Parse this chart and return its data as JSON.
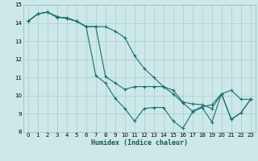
{
  "xlabel": "Humidex (Indice chaleur)",
  "bg_color": "#cce8e8",
  "grid_color": "#aacccc",
  "line_color": "#1a7070",
  "xlim": [
    -0.5,
    23.5
  ],
  "ylim": [
    8,
    15
  ],
  "xticks": [
    0,
    1,
    2,
    3,
    4,
    5,
    6,
    7,
    8,
    9,
    10,
    11,
    12,
    13,
    14,
    15,
    16,
    17,
    18,
    19,
    20,
    21,
    22,
    23
  ],
  "yticks": [
    8,
    9,
    10,
    11,
    12,
    13,
    14,
    15
  ],
  "series": [
    [
      14.1,
      14.5,
      14.6,
      14.3,
      14.3,
      14.1,
      13.8,
      11.1,
      10.7,
      9.85,
      9.3,
      8.6,
      9.3,
      9.35,
      9.35,
      8.6,
      8.2,
      9.1,
      9.35,
      8.55,
      10.1,
      8.7,
      9.05,
      9.8
    ],
    [
      14.1,
      14.5,
      14.6,
      14.35,
      14.25,
      14.1,
      13.8,
      13.8,
      11.05,
      10.7,
      10.35,
      10.5,
      10.5,
      10.5,
      10.5,
      10.3,
      9.65,
      9.55,
      9.5,
      9.3,
      10.1,
      8.7,
      9.05,
      9.8
    ],
    [
      14.1,
      14.5,
      14.6,
      14.35,
      14.25,
      14.1,
      13.8,
      13.8,
      13.8,
      13.55,
      13.2,
      12.2,
      11.5,
      11.0,
      10.5,
      10.1,
      9.6,
      9.15,
      9.4,
      9.5,
      10.1,
      10.3,
      9.8,
      9.8
    ]
  ]
}
